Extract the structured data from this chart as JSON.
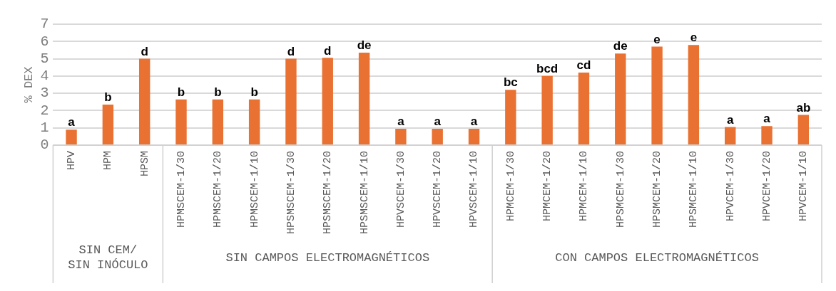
{
  "chart_data": {
    "type": "bar",
    "ylabel": "% DEX",
    "categories": [
      "HPV",
      "HPM",
      "HPSM",
      "HPMSCEM-1/30",
      "HPMSCEM-1/20",
      "HPMSCEM-1/10",
      "HPSMSCEM-1/30",
      "HPSMSCEM-1/20",
      "HPSMSCEM-1/10",
      "HPVSCEM-1/30",
      "HPVSCEM-1/20",
      "HPVSCEM-1/10",
      "HPMCEM-1/30",
      "HPMCEM-1/20",
      "HPMCEM-1/10",
      "HPSMCEM-1/30",
      "HPSMCEM-1/20",
      "HPSMCEM-1/10",
      "HPVCEM-1/30",
      "HPVCEM-1/20",
      "HPVCEM-1/10"
    ],
    "values": [
      0.9,
      2.35,
      5.0,
      2.65,
      2.65,
      2.65,
      5.0,
      5.05,
      5.35,
      0.95,
      0.95,
      0.95,
      3.2,
      4.0,
      4.2,
      5.3,
      5.7,
      5.8,
      1.05,
      1.1,
      1.75
    ],
    "value_labels": [
      "a",
      "b",
      "d",
      "b",
      "b",
      "b",
      "d",
      "d",
      "de",
      "a",
      "a",
      "a",
      "bc",
      "bcd",
      "cd",
      "de",
      "e",
      "e",
      "a",
      "a",
      "ab"
    ],
    "color": "#e97132",
    "ylim": [
      0,
      7
    ],
    "yticks": [
      0,
      1,
      2,
      3,
      4,
      5,
      6,
      7
    ],
    "grid": "y",
    "legend": false,
    "annotations": [
      "SIN CEM/\nSIN INÓCULO",
      "SIN CAMPOS ELECTROMAGNÉTICOS",
      "CON CAMPOS ELECTROMAGNÉTICOS"
    ]
  }
}
